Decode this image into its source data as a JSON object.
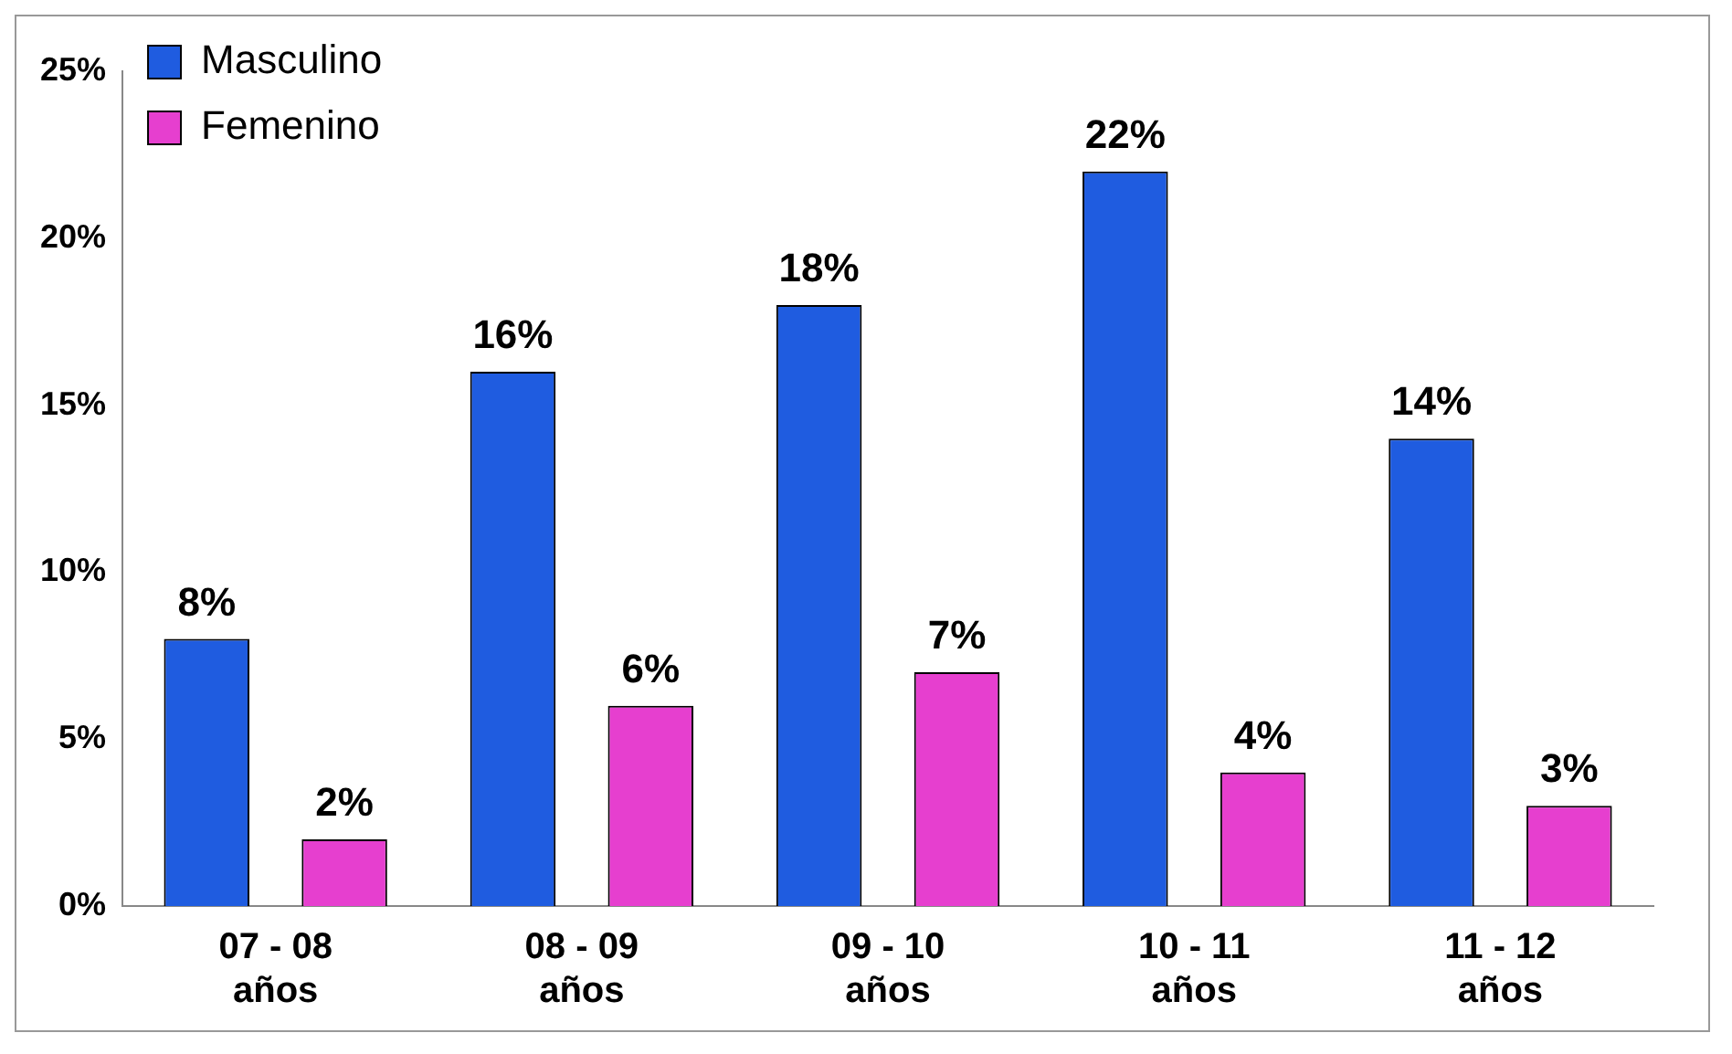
{
  "chart_data": {
    "type": "bar",
    "categories": [
      "07 - 08 años",
      "08 - 09 años",
      "09 - 10 años",
      "10 - 11 años",
      "11 - 12 años"
    ],
    "series": [
      {
        "name": "Masculino",
        "color": "#1f5ce0",
        "values": [
          8,
          16,
          18,
          22,
          14
        ],
        "value_labels": [
          "8%",
          "16%",
          "18%",
          "22%",
          "14%"
        ]
      },
      {
        "name": "Femenino",
        "color": "#e63fcf",
        "values": [
          2,
          6,
          7,
          4,
          3
        ],
        "value_labels": [
          "2%",
          "6%",
          "7%",
          "4%",
          "3%"
        ]
      }
    ],
    "ylim": [
      0,
      25
    ],
    "yticks": [
      {
        "value": 0,
        "label": "0%"
      },
      {
        "value": 5,
        "label": "5%"
      },
      {
        "value": 10,
        "label": "10%"
      },
      {
        "value": 15,
        "label": "15%"
      },
      {
        "value": 20,
        "label": "20%"
      },
      {
        "value": 25,
        "label": "25%"
      }
    ],
    "grid": false,
    "legend": "top left"
  }
}
